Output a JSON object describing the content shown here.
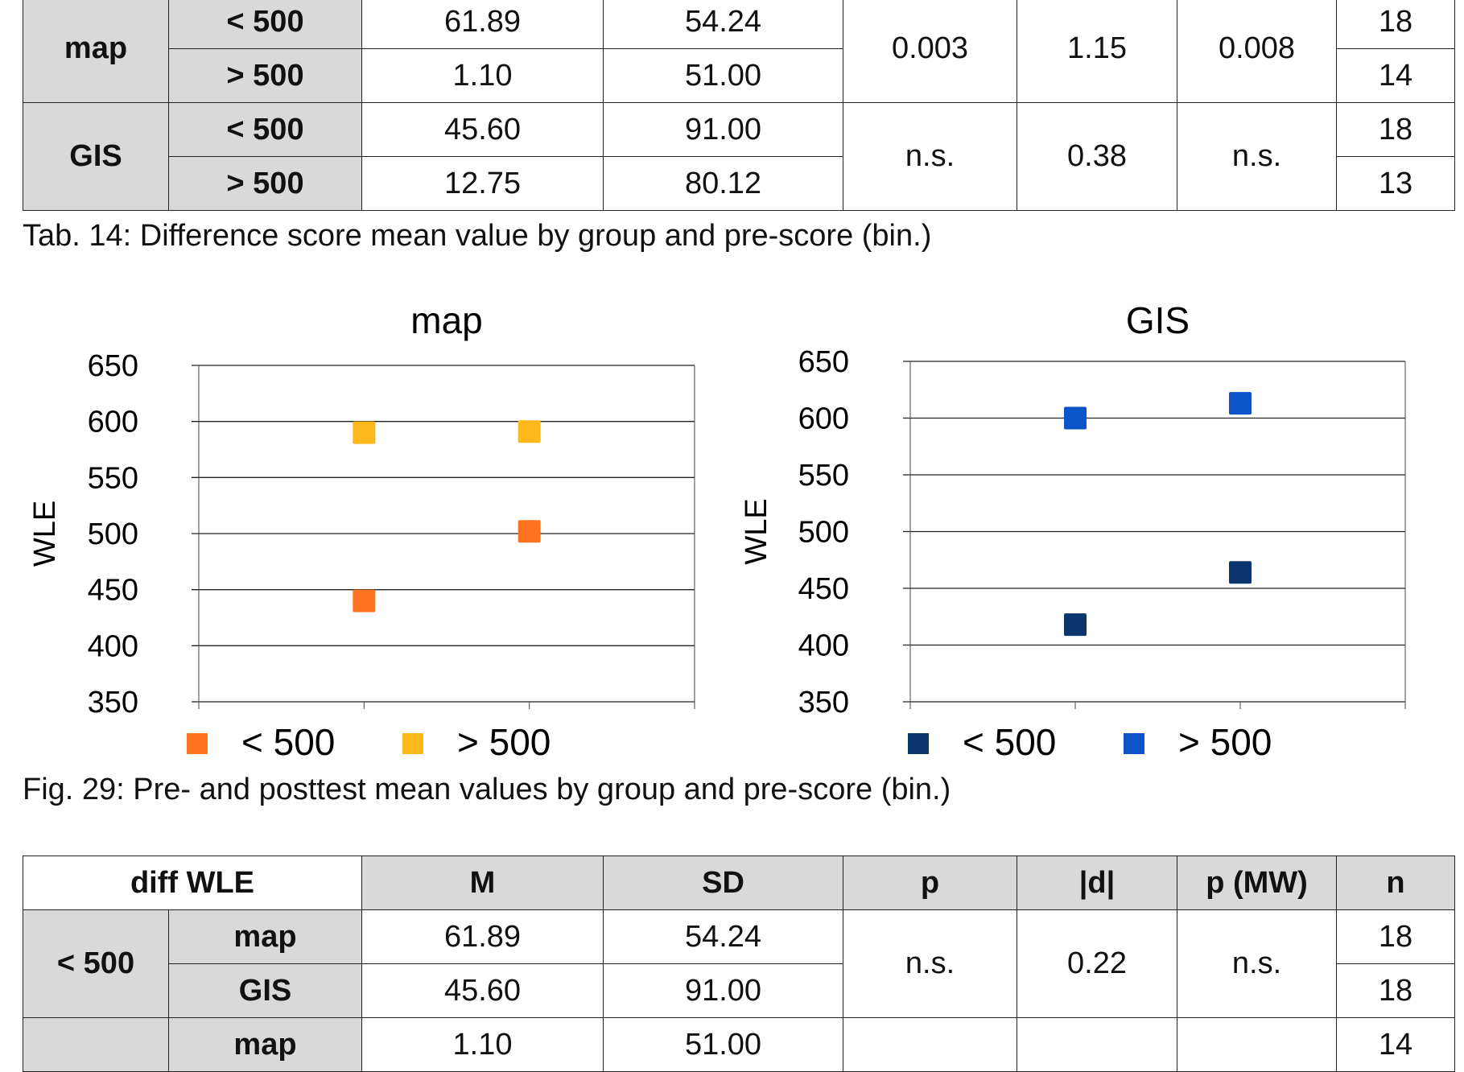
{
  "table14": {
    "rows": [
      {
        "group": "map",
        "sub": "< 500",
        "M": "61.89",
        "SD": "54.24",
        "p": "0.003",
        "d": "1.15",
        "pmw": "0.008",
        "n": "18"
      },
      {
        "group": "map",
        "sub": "> 500",
        "M": "1.10",
        "SD": "51.00",
        "n": "14"
      },
      {
        "group": "GIS",
        "sub": "< 500",
        "M": "45.60",
        "SD": "91.00",
        "p": "n.s.",
        "d": "0.38",
        "pmw": "n.s.",
        "n": "18"
      },
      {
        "group": "GIS",
        "sub": "> 500",
        "M": "12.75",
        "SD": "80.12",
        "n": "13"
      }
    ],
    "caption": "Tab. 14: Difference score mean value by group and pre-score (bin.)"
  },
  "figure_caption": "Fig. 29: Pre- and posttest mean values by group and pre-score (bin.)",
  "chart_data": [
    {
      "type": "scatter",
      "title": "map",
      "ylabel": "WLE",
      "xlabel": "",
      "ylim": [
        350,
        650
      ],
      "yticks": [
        350,
        400,
        450,
        500,
        550,
        600,
        650
      ],
      "grid": true,
      "legend": "bottom",
      "series": [
        {
          "name": "< 500",
          "color": "#ff7420",
          "values": [
            440,
            502
          ]
        },
        {
          "name": "> 500",
          "color": "#ffb81c",
          "values": [
            590,
            591
          ]
        }
      ]
    },
    {
      "type": "scatter",
      "title": "GIS",
      "ylabel": "WLE",
      "xlabel": "",
      "ylim": [
        350,
        650
      ],
      "yticks": [
        350,
        400,
        450,
        500,
        550,
        600,
        650
      ],
      "grid": true,
      "legend": "bottom",
      "series": [
        {
          "name": "< 500",
          "color": "#0b356c",
          "values": [
            418,
            464
          ]
        },
        {
          "name": "> 500",
          "color": "#0a54c8",
          "values": [
            600,
            613
          ]
        }
      ]
    }
  ],
  "table15": {
    "header": {
      "label": "diff WLE",
      "M": "M",
      "SD": "SD",
      "p": "p",
      "d": "|d|",
      "pmw": "p (MW)",
      "n": "n"
    },
    "rows": [
      {
        "group": "< 500",
        "sub": "map",
        "M": "61.89",
        "SD": "54.24",
        "p": "n.s.",
        "d": "0.22",
        "pmw": "n.s.",
        "n": "18"
      },
      {
        "group": "< 500",
        "sub": "GIS",
        "M": "45.60",
        "SD": "91.00",
        "n": "18"
      },
      {
        "sub": "map",
        "M": "1.10",
        "SD": "51.00",
        "n": "14"
      }
    ]
  }
}
